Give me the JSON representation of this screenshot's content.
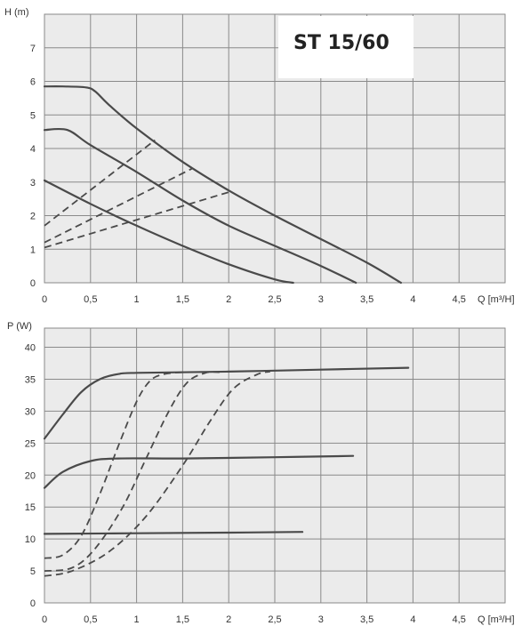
{
  "chart_data": [
    {
      "type": "line",
      "title": "ST 15/60",
      "xlabel": "Q [m³/H]",
      "ylabel": "H (m)",
      "xlim": [
        0,
        5
      ],
      "ylim": [
        0,
        8
      ],
      "x_ticks": [
        "0",
        "0,5",
        "1",
        "1,5",
        "2",
        "2,5",
        "3",
        "3,5",
        "4",
        "4,5"
      ],
      "y_ticks": [
        "0",
        "1",
        "2",
        "3",
        "4",
        "5",
        "6",
        "7"
      ],
      "grid": true,
      "series": [
        {
          "style": "solid",
          "points": [
            [
              0,
              5.85
            ],
            [
              0.2,
              5.85
            ],
            [
              0.45,
              5.82
            ],
            [
              0.55,
              5.7
            ],
            [
              0.7,
              5.3
            ],
            [
              1.0,
              4.6
            ],
            [
              1.5,
              3.6
            ],
            [
              2.0,
              2.75
            ],
            [
              2.5,
              2.0
            ],
            [
              3.0,
              1.3
            ],
            [
              3.5,
              0.6
            ],
            [
              3.87,
              0.0
            ]
          ]
        },
        {
          "style": "solid",
          "points": [
            [
              0,
              4.55
            ],
            [
              0.25,
              4.55
            ],
            [
              0.5,
              4.1
            ],
            [
              1.0,
              3.3
            ],
            [
              1.5,
              2.45
            ],
            [
              2.0,
              1.7
            ],
            [
              2.5,
              1.1
            ],
            [
              3.0,
              0.5
            ],
            [
              3.38,
              0.0
            ]
          ]
        },
        {
          "style": "solid",
          "points": [
            [
              0,
              3.05
            ],
            [
              0.5,
              2.35
            ],
            [
              1.0,
              1.7
            ],
            [
              1.5,
              1.1
            ],
            [
              2.0,
              0.55
            ],
            [
              2.5,
              0.1
            ],
            [
              2.7,
              0.0
            ]
          ]
        },
        {
          "style": "dashed",
          "points": [
            [
              0,
              1.7
            ],
            [
              1.2,
              4.25
            ]
          ]
        },
        {
          "style": "dashed",
          "points": [
            [
              0,
              1.2
            ],
            [
              1.6,
              3.4
            ]
          ]
        },
        {
          "style": "dashed",
          "points": [
            [
              0,
              1.05
            ],
            [
              2.0,
              2.7
            ]
          ]
        }
      ]
    },
    {
      "type": "line",
      "xlabel": "Q [m³/H]",
      "ylabel": "P (W)",
      "xlim": [
        0,
        5
      ],
      "ylim": [
        0,
        43
      ],
      "x_ticks": [
        "0",
        "0,5",
        "1",
        "1,5",
        "2",
        "2,5",
        "3",
        "3,5",
        "4",
        "4,5"
      ],
      "y_ticks": [
        "0",
        "5",
        "10",
        "15",
        "20",
        "25",
        "30",
        "35",
        "40"
      ],
      "grid": true,
      "series": [
        {
          "style": "solid",
          "points": [
            [
              0,
              25.7
            ],
            [
              0.2,
              29.5
            ],
            [
              0.4,
              33.0
            ],
            [
              0.6,
              35.0
            ],
            [
              0.8,
              35.8
            ],
            [
              1.0,
              36.0
            ],
            [
              2.0,
              36.2
            ],
            [
              3.0,
              36.5
            ],
            [
              3.95,
              36.8
            ]
          ]
        },
        {
          "style": "solid",
          "points": [
            [
              0,
              18.0
            ],
            [
              0.2,
              20.5
            ],
            [
              0.5,
              22.2
            ],
            [
              0.8,
              22.6
            ],
            [
              1.5,
              22.6
            ],
            [
              2.5,
              22.8
            ],
            [
              3.35,
              23.0
            ]
          ]
        },
        {
          "style": "solid",
          "points": [
            [
              0,
              10.8
            ],
            [
              1.0,
              10.9
            ],
            [
              2.0,
              11.0
            ],
            [
              2.8,
              11.1
            ]
          ]
        },
        {
          "style": "dashed",
          "points": [
            [
              0,
              7.0
            ],
            [
              0.2,
              7.5
            ],
            [
              0.4,
              10.5
            ],
            [
              0.6,
              17.0
            ],
            [
              0.8,
              24.5
            ],
            [
              1.0,
              31.5
            ],
            [
              1.15,
              34.8
            ],
            [
              1.3,
              35.8
            ],
            [
              1.5,
              36.1
            ]
          ]
        },
        {
          "style": "dashed",
          "points": [
            [
              0,
              5.0
            ],
            [
              0.3,
              5.5
            ],
            [
              0.55,
              8.5
            ],
            [
              0.85,
              15.0
            ],
            [
              1.1,
              22.5
            ],
            [
              1.35,
              30.0
            ],
            [
              1.55,
              34.5
            ],
            [
              1.75,
              36.0
            ],
            [
              1.9,
              36.1
            ]
          ]
        },
        {
          "style": "dashed",
          "points": [
            [
              0,
              4.2
            ],
            [
              0.3,
              5.0
            ],
            [
              0.7,
              8.0
            ],
            [
              1.1,
              13.5
            ],
            [
              1.5,
              21.5
            ],
            [
              1.8,
              28.5
            ],
            [
              2.05,
              33.5
            ],
            [
              2.3,
              35.7
            ],
            [
              2.45,
              36.2
            ]
          ]
        }
      ]
    }
  ]
}
